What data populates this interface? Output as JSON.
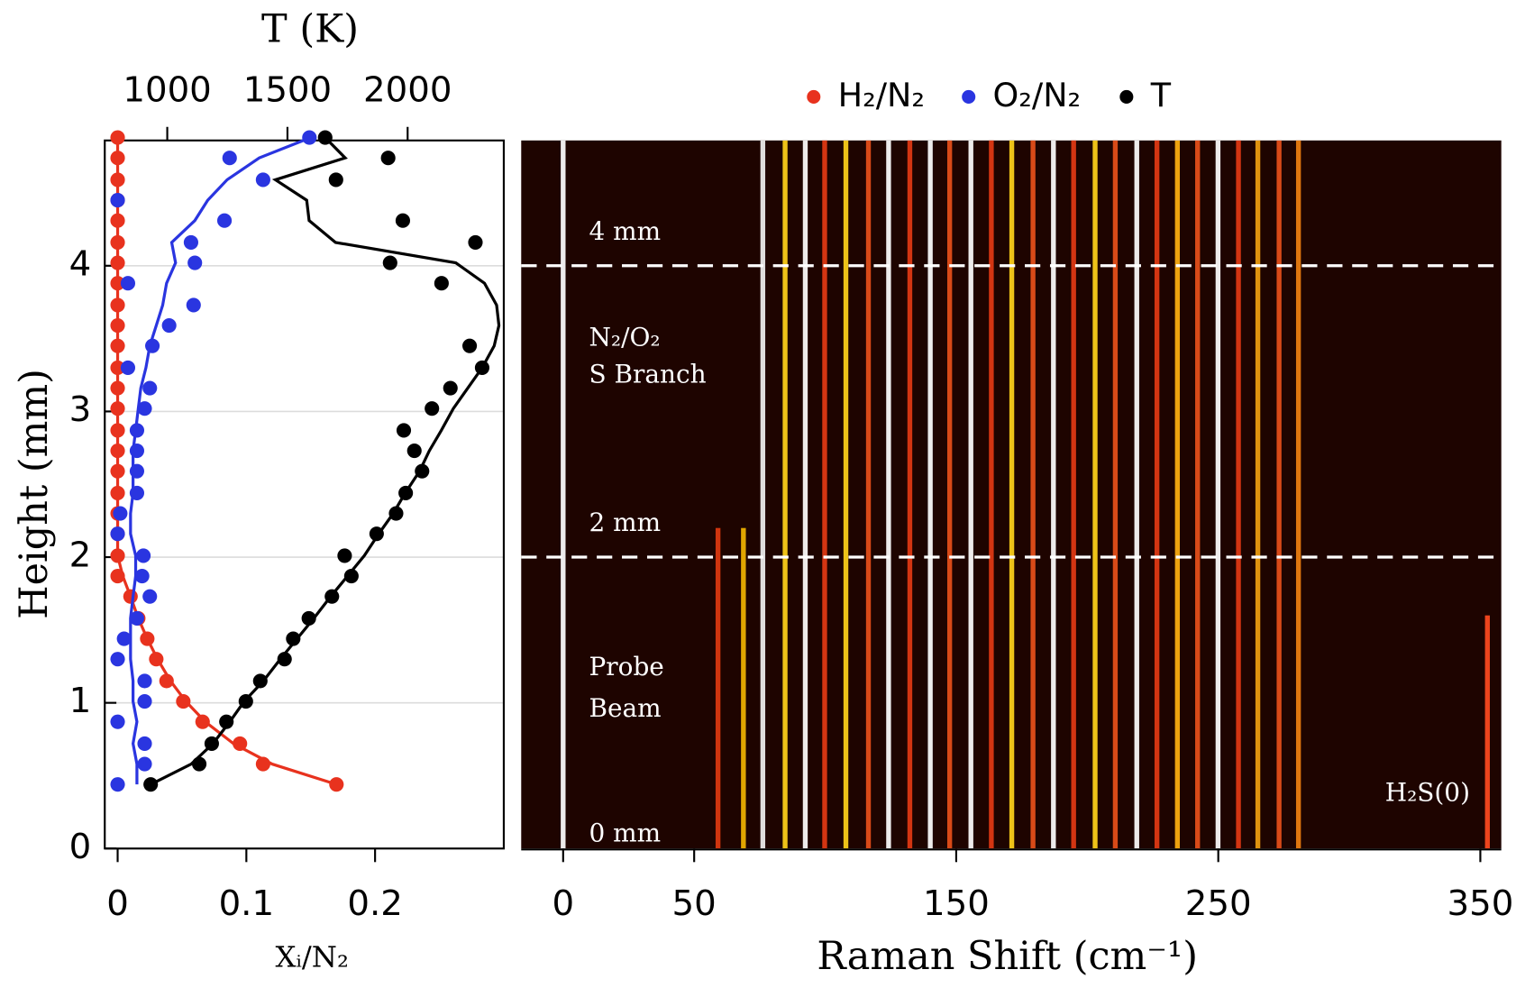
{
  "chart_data": [
    {
      "type": "profile",
      "x2_label": "T (K)",
      "y_label": "Height (mm)",
      "x_label": "Xᵢ/N₂",
      "ylim": [
        0,
        4.86
      ],
      "yticks": [
        0,
        1,
        2,
        3,
        4
      ],
      "xlim": [
        -0.01,
        0.3
      ],
      "xticks": [
        0,
        0.1,
        0.2
      ],
      "x2lim": [
        740,
        2400
      ],
      "x2ticks": [
        1000,
        1500,
        2000
      ],
      "grid": true,
      "heights": [
        0.44,
        0.58,
        0.72,
        0.87,
        1.01,
        1.15,
        1.3,
        1.44,
        1.58,
        1.73,
        1.87,
        2.01,
        2.16,
        2.3,
        2.44,
        2.59,
        2.73,
        2.87,
        3.02,
        3.16,
        3.3,
        3.45,
        3.59,
        3.73,
        3.88,
        4.02,
        4.16,
        4.31,
        4.45,
        4.59,
        4.74,
        4.88
      ],
      "series": [
        {
          "name": "H₂/N₂",
          "color": "#e8321e",
          "values": [
            0.17,
            0.113,
            0.095,
            0.066,
            0.051,
            0.038,
            0.03,
            0.023,
            0.016,
            0.01,
            0,
            0,
            0,
            0,
            0,
            0,
            0,
            0,
            0,
            0,
            0,
            0,
            0,
            0,
            0,
            0,
            0,
            0,
            0,
            0,
            0,
            0
          ],
          "fit": [
            0.17,
            0.12,
            0.09,
            0.068,
            0.053,
            0.041,
            0.031,
            0.023,
            0.016,
            0.01,
            0.004,
            0,
            0,
            0,
            0,
            0,
            0,
            0,
            0,
            0,
            0,
            0,
            0,
            0,
            0,
            0,
            0,
            0,
            0,
            0,
            0,
            0
          ]
        },
        {
          "name": "O₂/N₂",
          "color": "#2a35e0",
          "values": [
            0,
            0.021,
            0.021,
            0,
            0.021,
            0.021,
            0,
            0.005,
            0.015,
            0.025,
            0.019,
            0.02,
            0,
            0.002,
            0.015,
            0.015,
            0.015,
            0.015,
            0.021,
            0.025,
            0.008,
            0.027,
            0.04,
            0.059,
            0.008,
            0.06,
            0.057,
            0.083,
            0,
            0.113,
            0.087,
            0.149
          ],
          "fit": [
            0.015,
            0.015,
            0.012,
            0.015,
            0.012,
            0.012,
            0.01,
            0.01,
            0.01,
            0.012,
            0.014,
            0.014,
            0.01,
            0.01,
            0.012,
            0.012,
            0.012,
            0.014,
            0.016,
            0.018,
            0.022,
            0.025,
            0.03,
            0.035,
            0.038,
            0.045,
            0.042,
            0.06,
            0.07,
            0.085,
            0.11,
            0.15
          ]
        },
        {
          "name": "T",
          "color": "#000000",
          "axis": "x2",
          "values": [
            931,
            1133,
            1185,
            1246,
            1327,
            1387,
            1488,
            1524,
            1589,
            1685,
            1766,
            1738,
            1871,
            1952,
            1992,
            2060,
            2028,
            1984,
            2101,
            2178,
            2310,
            2258,
            null,
            null,
            2141,
            1927,
            2282,
            1980,
            null,
            1702,
            1919,
            1657
          ],
          "fit": [
            931,
            1100,
            1190,
            1260,
            1320,
            1400,
            1470,
            1540,
            1610,
            1680,
            1750,
            1820,
            1880,
            1940,
            1990,
            2050,
            2090,
            2140,
            2190,
            2250,
            2310,
            2360,
            2380,
            2370,
            2320,
            2200,
            1700,
            1590,
            1580,
            1450,
            1740,
            1657
          ]
        }
      ]
    },
    {
      "type": "spectrogram",
      "x_label": "Raman Shift (cm⁻¹)",
      "xlim": [
        -16,
        358
      ],
      "xticks": [
        0,
        50,
        150,
        250,
        350
      ],
      "ylim": [
        0,
        4.86
      ],
      "background": "#1e0400",
      "peaks": [
        0,
        59.1,
        68.8,
        76.2,
        84.7,
        92.4,
        99.8,
        107.9,
        116.5,
        124.2,
        132.3,
        140.1,
        147.5,
        155.6,
        163.4,
        171.2,
        179.3,
        187.1,
        194.8,
        203.0,
        210.7,
        218.9,
        226.6,
        234.4,
        242.1,
        249.9,
        257.7,
        265.1,
        273.2,
        280.6,
        352.7
      ],
      "extents": [
        4.86,
        2.2,
        2.2,
        4.86,
        4.86,
        4.86,
        4.86,
        4.86,
        4.86,
        4.86,
        4.86,
        4.86,
        4.86,
        4.86,
        4.86,
        4.86,
        4.86,
        4.86,
        4.86,
        4.86,
        4.86,
        4.86,
        4.86,
        4.86,
        4.86,
        4.86,
        4.86,
        4.86,
        4.86,
        4.86,
        1.6
      ],
      "colors": [
        "#ffffff",
        "#e03a10",
        "#f2b400",
        "#f0f0f0",
        "#ffd21a",
        "#ffffff",
        "#e33a14",
        "#ffd21a",
        "#e8501a",
        "#ffffff",
        "#e33a14",
        "#ffffff",
        "#e8501a",
        "#ffffff",
        "#e33a14",
        "#ffd21a",
        "#e8501a",
        "#ffffff",
        "#e33a14",
        "#ffd21a",
        "#e8501a",
        "#ffffff",
        "#e33a14",
        "#ffb010",
        "#e8501a",
        "#ffffff",
        "#e33a14",
        "#f0a010",
        "#e8501a",
        "#f08010",
        "#ff4a20"
      ],
      "markers": [
        2,
        4
      ],
      "marker_labels": [
        "2 mm",
        "4 mm"
      ],
      "annotations": [
        "0 mm",
        "N₂/O₂",
        "S Branch",
        "Probe",
        "Beam",
        "H₂S(0)"
      ]
    }
  ]
}
